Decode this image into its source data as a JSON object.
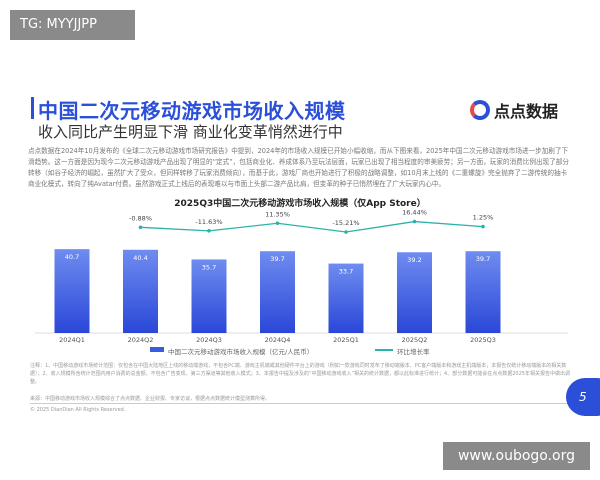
{
  "overlay": {
    "tg_label": "TG: MYYJJPP",
    "watermark": "www.oubogo.org"
  },
  "header": {
    "title": "中国二次元移动游戏市场收入规模",
    "subtitle": "收入同比产生明显下滑 商业化变革悄然进行中",
    "logo_text": "点点数据"
  },
  "body_text": "点点数据在2024年10月发布的《全球二次元移动游戏市场研究报告》中提到，2024年的市场收入规模已开始小幅收缩，而从下图来看，2025年中国二次元移动游戏市场进一步加剧了下滑趋势。这一方面是因为现今二次元移动游戏产品出现了明显的“定式”，包括商业化、养成体系乃至玩法层面，玩家已出现了相当程度的审美疲劳；另一方面，玩家的消费比例出现了部分转移（如谷子经济的崛起，虽然扩大了受众，但同样转移了玩家消费倾向），而基于此，游戏厂商也开始进行了积极的战略调整，如10月末上线的《二重螺旋》完全抛弃了二游传统的抽卡商业化模式，转向了纯Avatar付费。虽然游戏正式上线后的表现难以与市面上头部二游产品比肩，但变革的种子已悄然埋在了广大玩家内心中。",
  "chart_data": {
    "type": "bar",
    "title": "2025Q3中国二次元移动游戏市场收入规模（仅App Store）",
    "categories": [
      "2024Q1",
      "2024Q2",
      "2024Q3",
      "2024Q4",
      "2025Q1",
      "2025Q2",
      "2025Q3"
    ],
    "series": [
      {
        "name": "中国二次元移动游戏市场收入规模（亿元/人民币）",
        "type": "bar",
        "values": [
          40.7,
          40.4,
          35.7,
          39.7,
          33.7,
          39.2,
          39.7
        ],
        "color": "#3a5ae0"
      },
      {
        "name": "环比增长率",
        "type": "line",
        "values": [
          null,
          -0.88,
          -11.63,
          11.35,
          -15.21,
          16.44,
          1.25
        ],
        "labels": [
          "",
          "-0.88%",
          "-11.63%",
          "11.35%",
          "-15.21%",
          "16.44%",
          "1.25%"
        ],
        "color": "#2bb3a8"
      }
    ],
    "grid": false,
    "legend": "bottom"
  },
  "footnote": "注释：1、中国移动游戏市场统计范围：仅包含在中国大陆地区上线的移动端游戏，不包含PC端、游戏主机端或其他硬件平台上的游戏（例如一款游戏同时发布了移动端版本、PC客户端版本和游戏主机端版本，本报告仅统计移动端版本的相关数据）；2、收入规模所含统计范围内用户消费的总金额，不包含广告变现、第三方渠道等其他收入模式；3、本报告中提及涉及的“中国移动游戏收入”相关的统计数据，都以此标准进行统计；4、部分数据可能会在点点数据2025年相关报告中做出调整。",
  "source": "来源：中国移动游戏市场收入规模综合了点点数据、企业财报、专家访谈，根据点点数据统计模型测算所得。",
  "copyright": "© 2025 DianDian All Rights Reserved.",
  "page_number": "5"
}
